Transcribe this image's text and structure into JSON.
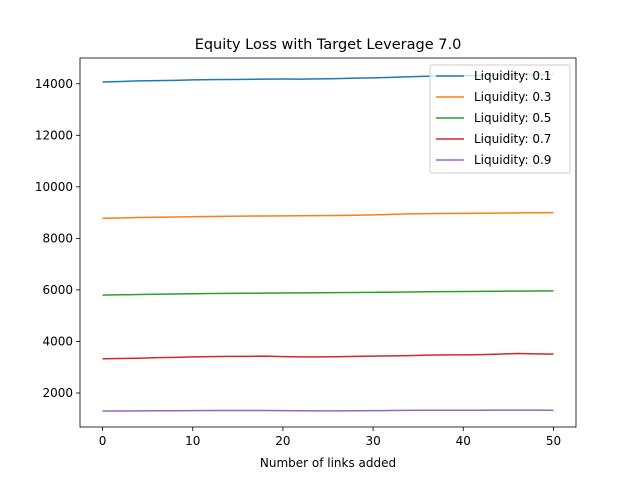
{
  "chart_data": {
    "type": "line",
    "title": "Equity Loss with Target Leverage 7.0",
    "xlabel": "Number of links added",
    "ylabel": "",
    "xlim": [
      -2.5,
      52.5
    ],
    "ylim": [
      680,
      15000
    ],
    "xticks": [
      0,
      10,
      20,
      30,
      40,
      50
    ],
    "yticks": [
      2000,
      4000,
      6000,
      8000,
      10000,
      12000,
      14000
    ],
    "grid": false,
    "legend_position": "top-right",
    "x": [
      0,
      2,
      4,
      6,
      8,
      10,
      12,
      14,
      16,
      18,
      20,
      22,
      24,
      26,
      28,
      30,
      32,
      34,
      36,
      38,
      40,
      42,
      44,
      46,
      48,
      50
    ],
    "series": [
      {
        "name": "Liquidity: 0.1",
        "color": "#1f77b4",
        "values": [
          14070,
          14090,
          14110,
          14120,
          14130,
          14150,
          14160,
          14165,
          14170,
          14180,
          14185,
          14180,
          14190,
          14200,
          14220,
          14230,
          14250,
          14270,
          14290,
          14300,
          14310,
          14320,
          14330,
          14340,
          14350,
          14360
        ]
      },
      {
        "name": "Liquidity: 0.3",
        "color": "#ff7f0e",
        "values": [
          8780,
          8790,
          8810,
          8820,
          8830,
          8840,
          8850,
          8860,
          8865,
          8870,
          8875,
          8880,
          8885,
          8890,
          8900,
          8910,
          8930,
          8950,
          8960,
          8965,
          8970,
          8975,
          8980,
          8990,
          8995,
          9000
        ]
      },
      {
        "name": "Liquidity: 0.5",
        "color": "#2ca02c",
        "values": [
          5800,
          5810,
          5820,
          5830,
          5840,
          5850,
          5860,
          5865,
          5870,
          5875,
          5880,
          5885,
          5890,
          5895,
          5900,
          5905,
          5910,
          5920,
          5930,
          5935,
          5940,
          5945,
          5950,
          5955,
          5960,
          5965
        ]
      },
      {
        "name": "Liquidity: 0.7",
        "color": "#d62728",
        "values": [
          3330,
          3340,
          3350,
          3370,
          3380,
          3400,
          3410,
          3420,
          3420,
          3430,
          3410,
          3400,
          3400,
          3405,
          3420,
          3430,
          3440,
          3450,
          3470,
          3480,
          3480,
          3490,
          3510,
          3530,
          3520,
          3510
        ]
      },
      {
        "name": "Liquidity: 0.9",
        "color": "#9467bd",
        "values": [
          1300,
          1300,
          1305,
          1310,
          1310,
          1315,
          1320,
          1320,
          1320,
          1320,
          1315,
          1310,
          1305,
          1305,
          1310,
          1315,
          1320,
          1325,
          1330,
          1330,
          1330,
          1330,
          1335,
          1335,
          1335,
          1330
        ]
      }
    ]
  }
}
